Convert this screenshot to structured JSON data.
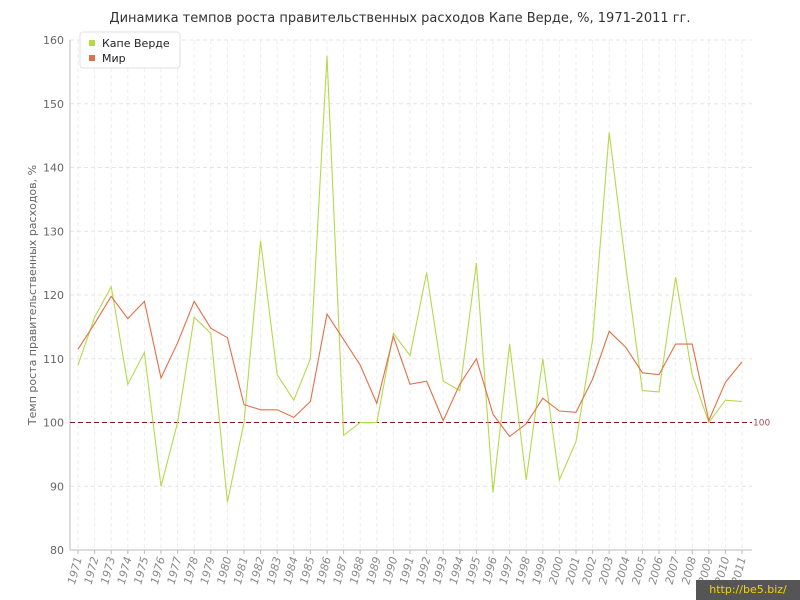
{
  "chart_data": {
    "type": "line",
    "title": "Динамика темпов роста правительственных расходов Капе Верде, %, 1971-2011 гг.",
    "ylabel": "Темп роста правительственных расходов, %",
    "xlabel": "",
    "ylim": [
      80,
      160
    ],
    "yticks": [
      80,
      90,
      100,
      110,
      120,
      130,
      140,
      150,
      160
    ],
    "reference_line": {
      "value": 100,
      "label": "100",
      "color": "#7a1a1a"
    },
    "grid": true,
    "legend_position": "top-left",
    "categories": [
      "1971",
      "1972",
      "1973",
      "1974",
      "1975",
      "1976",
      "1977",
      "1978",
      "1979",
      "1980",
      "1981",
      "1982",
      "1983",
      "1984",
      "1985",
      "1986",
      "1987",
      "1988",
      "1989",
      "1990",
      "1991",
      "1992",
      "1993",
      "1994",
      "1995",
      "1996",
      "1997",
      "1998",
      "1999",
      "2000",
      "2001",
      "2002",
      "2003",
      "2004",
      "2005",
      "2006",
      "2007",
      "2008",
      "2009",
      "2010",
      "2011"
    ],
    "series": [
      {
        "name": "Капе Верде",
        "color": "#b5d94a",
        "values": [
          109,
          116.5,
          121.3,
          106,
          111,
          90,
          100,
          116.5,
          114,
          87.5,
          100,
          128.5,
          107.5,
          103.5,
          110,
          157.5,
          98,
          100,
          100,
          114,
          110.5,
          123.5,
          106.5,
          105,
          125,
          89,
          112.3,
          91,
          110,
          91,
          97,
          113,
          145.5,
          124.5,
          105,
          104.8,
          122.8,
          107.5,
          100,
          103.5,
          103.3
        ]
      },
      {
        "name": "Мир",
        "color": "#e07048",
        "values": [
          111.5,
          115.5,
          119.8,
          116.3,
          119,
          107,
          112.5,
          119,
          114.8,
          113.3,
          102.8,
          102,
          102,
          100.8,
          103.3,
          117,
          113,
          109,
          103,
          113.5,
          106,
          106.5,
          100.3,
          106,
          110,
          101.3,
          97.8,
          99.8,
          103.8,
          101.8,
          101.6,
          106.8,
          114.3,
          111.8,
          107.8,
          107.5,
          112.3,
          112.3,
          100.3,
          106.3,
          109.5
        ]
      }
    ]
  },
  "watermark": "http://be5.biz/"
}
